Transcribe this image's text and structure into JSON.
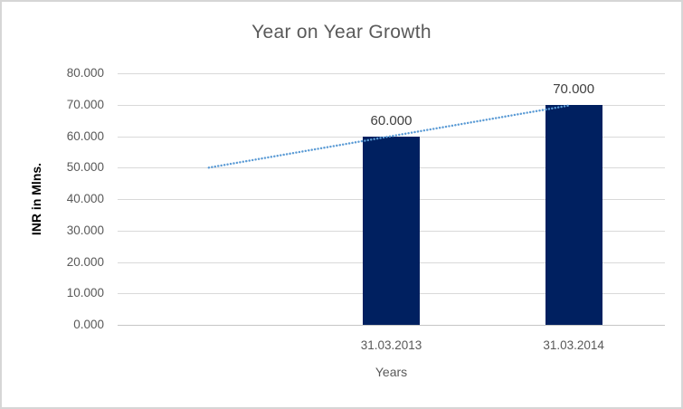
{
  "window": {
    "background_color": "#ffffff",
    "border_color": "#d6d6d6"
  },
  "chart_data": {
    "type": "bar",
    "title": "Year on Year Growth",
    "xlabel": "Years",
    "ylabel": "INR in Mlns.",
    "categories": [
      "",
      "31.03.2013",
      "31.03.2014"
    ],
    "series": [
      {
        "values": [
          null,
          60,
          70
        ]
      }
    ],
    "data_labels": [
      "",
      "60.000",
      "70.000"
    ],
    "ylim": [
      0,
      80
    ],
    "ytick_values": [
      0,
      10,
      20,
      30,
      40,
      50,
      60,
      70,
      80
    ],
    "ytick_labels": [
      "0.000",
      "10.000",
      "20.000",
      "30.000",
      "40.000",
      "50.000",
      "60.000",
      "70.000",
      "80.000"
    ],
    "grid": true,
    "legend": "none",
    "trendline": {
      "style": "dotted",
      "color": "#5b9bd5",
      "start": {
        "category_index": 0,
        "value": 50
      },
      "end": {
        "category_index": 2,
        "value": 70
      }
    },
    "colors": {
      "bar": "#002060",
      "gridline": "#d9d9d9",
      "axis_line": "#c6c6c6",
      "title": "#595959",
      "tick_label": "#595959",
      "data_label": "#404040",
      "axis_title": "#595959",
      "y_axis_title": "#000000"
    }
  }
}
